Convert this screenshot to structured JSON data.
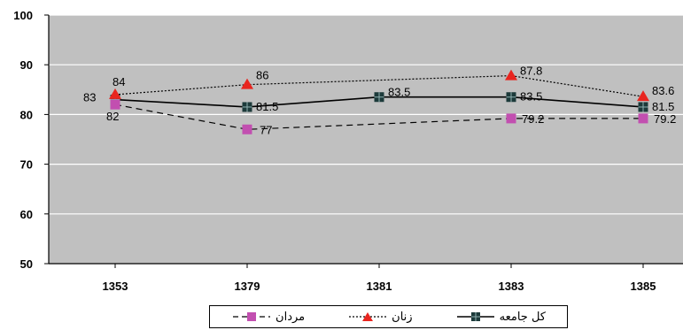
{
  "chart_data": {
    "type": "line",
    "categories": [
      "1353",
      "1379",
      "1381",
      "1383",
      "1385"
    ],
    "ylim": [
      50,
      100
    ],
    "yticks": [
      50,
      60,
      70,
      80,
      90,
      100
    ],
    "grid": true,
    "legend_position": "bottom",
    "series": [
      {
        "name": "کل جامعه",
        "values": [
          83,
          81.5,
          83.5,
          83.5,
          81.5
        ],
        "labels": [
          "83",
          "81.5",
          "83.5",
          "83.5",
          "81.5"
        ],
        "color": "#000000",
        "marker_color": "#1c3a3a",
        "marker": "square-cross",
        "line": "solid"
      },
      {
        "name": "زنان",
        "values": [
          84,
          86,
          null,
          87.8,
          83.6
        ],
        "labels": [
          "84",
          "86",
          "",
          "87.8",
          "83.6"
        ],
        "color": "#000000",
        "marker_color": "#e8251f",
        "marker": "triangle",
        "line": "dotted"
      },
      {
        "name": "مردان",
        "values": [
          82,
          77,
          null,
          79.2,
          79.2
        ],
        "labels": [
          "82",
          "77",
          "",
          "79.2",
          "79.2"
        ],
        "color": "#000000",
        "marker_color": "#c24fb0",
        "marker": "square",
        "line": "dashed"
      }
    ]
  },
  "legend": {
    "total_label": "کل جامعه",
    "women_label": "زنان",
    "men_label": "مردان"
  }
}
